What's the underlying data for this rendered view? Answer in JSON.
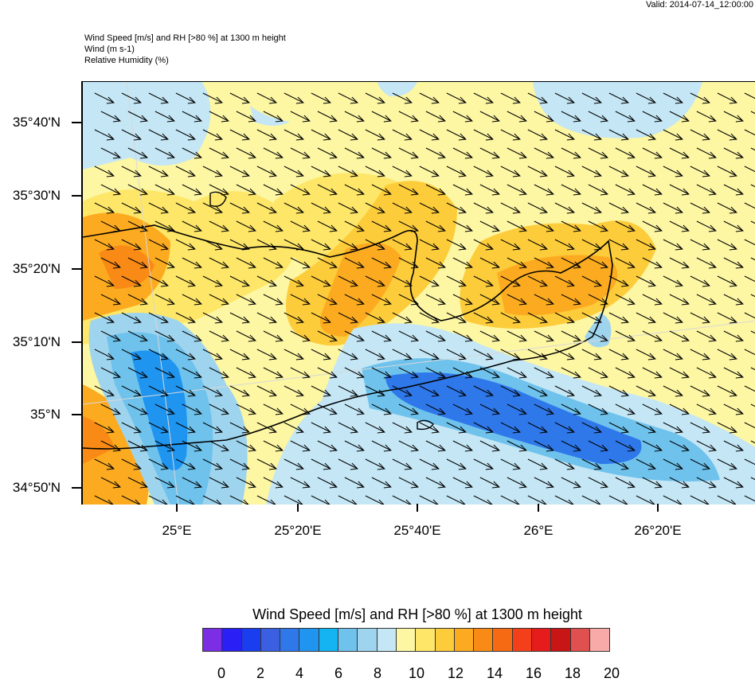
{
  "header": {
    "valid": "Valid: 2014-07-14_12:00:00",
    "line1": "Wind Speed [m/s] and RH [>80 %] at 1300 m height",
    "line2": "Wind   (m s-1)",
    "line3": "Relative Humidity   (%)"
  },
  "map": {
    "lat_labels": [
      "35°40'N",
      "35°30'N",
      "35°20'N",
      "35°10'N",
      "35°N",
      "34°50'N"
    ],
    "lon_labels": [
      "25°E",
      "25°20'E",
      "25°40'E",
      "26°E",
      "26°20'E"
    ],
    "wind_direction": "north-west to south-east"
  },
  "colorbar": {
    "title": "Wind Speed [m/s] and RH [>80 %] at 1300 m height",
    "colors": [
      "#7b2ee3",
      "#2a1ff5",
      "#1a3df0",
      "#3a5fe0",
      "#2f78ea",
      "#1f95f0",
      "#14b4f2",
      "#6ec2ec",
      "#9fd4ee",
      "#c4e6f5",
      "#fdf6a3",
      "#fde668",
      "#fdcc3b",
      "#fcab20",
      "#f98a16",
      "#f76a14",
      "#f3401a",
      "#e61b1b",
      "#c81515",
      "#e0504f",
      "#f8aaa8"
    ],
    "labels": [
      "0",
      "2",
      "4",
      "6",
      "8",
      "10",
      "12",
      "14",
      "16",
      "18",
      "20"
    ]
  }
}
